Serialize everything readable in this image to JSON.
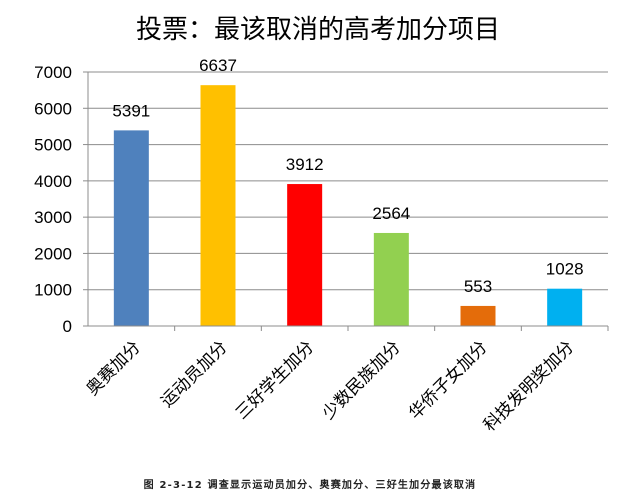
{
  "caption": "图 2-3-12 调查显示运动员加分、奥赛加分、三好生加分最该取消",
  "chart_data": {
    "type": "bar",
    "title": "投票：最该取消的高考加分项目",
    "categories": [
      "奥赛加分",
      "运动员加分",
      "三好学生加分",
      "少数民族加分",
      "华侨子女加分",
      "科技发明奖加分"
    ],
    "values": [
      5391,
      6637,
      3912,
      2564,
      553,
      1028
    ],
    "colors": [
      "#4f81bd",
      "#ffc000",
      "#ff0000",
      "#92d050",
      "#e46c0a",
      "#00b0f0"
    ],
    "ylim": [
      0,
      7000
    ],
    "yticks": [
      0,
      1000,
      2000,
      3000,
      4000,
      5000,
      6000,
      7000
    ],
    "xlabel": "",
    "ylabel": "",
    "grid": true,
    "data_labels": true
  }
}
